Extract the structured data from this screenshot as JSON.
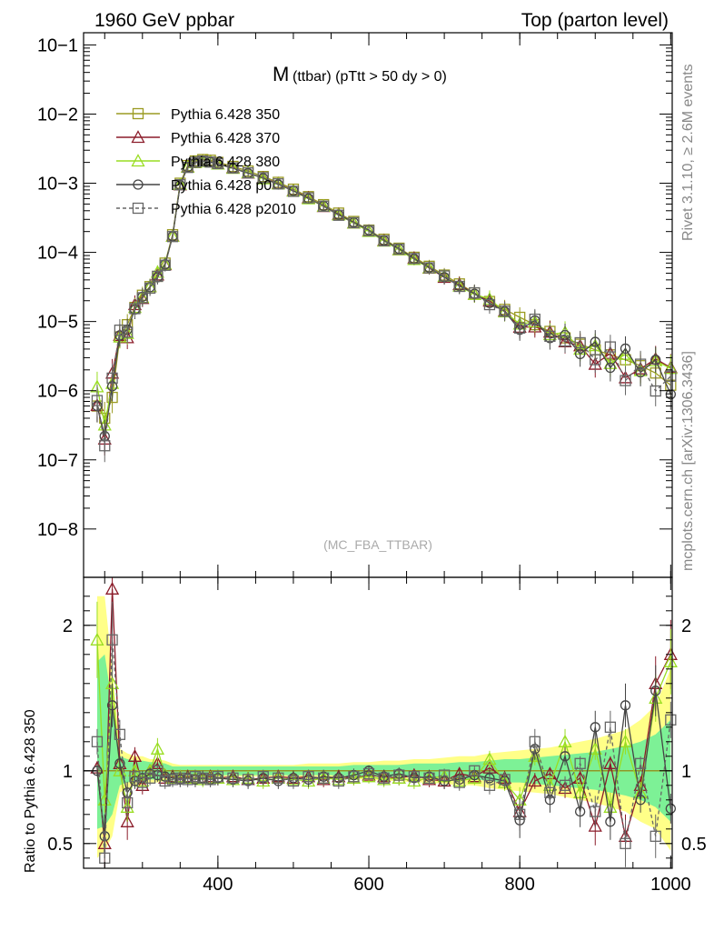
{
  "header": {
    "left_title": "1960 GeV ppbar",
    "right_title": "Top (parton level)"
  },
  "plot_title": {
    "main": "M",
    "sub": "(ttbar) (pTtt > 50 dy > 0)"
  },
  "side_labels": {
    "rivet": "Rivet 3.1.10, ≥ 2.6M events",
    "mcplots": "mcplots.cern.ch [arXiv:1306.3436]"
  },
  "watermark": "(MC_FBA_TTBAR)",
  "colors": {
    "p350": "#9b9b22",
    "p370": "#8b1c2a",
    "p380": "#99dd22",
    "p0": "#444444",
    "p2010": "#666666",
    "band_yellow": "#ffff88",
    "band_green": "#66ee99"
  },
  "chart_data": [
    {
      "type": "line",
      "scale": "log",
      "ylim": [
        2e-09,
        0.15
      ],
      "xlim": [
        222,
        1002
      ],
      "ytick_labels": [
        "10−8",
        "10−7",
        "10−6",
        "10−5",
        "10−4",
        "10−3",
        "10−2",
        "10−1"
      ],
      "ytick_values": [
        1e-08,
        1e-07,
        1e-06,
        1e-05,
        0.0001,
        0.001,
        0.01,
        0.1
      ],
      "legend": {
        "placement": "top-left",
        "entries": [
          {
            "key": "p350",
            "label": "Pythia 6.428 350",
            "marker": "square",
            "dashed": false
          },
          {
            "key": "p370",
            "label": "Pythia 6.428 370",
            "marker": "triangle",
            "dashed": false
          },
          {
            "key": "p380",
            "label": "Pythia 6.428 380",
            "marker": "triangle",
            "dashed": false
          },
          {
            "key": "p0",
            "label": "Pythia 6.428 p0",
            "marker": "circle",
            "dashed": false
          },
          {
            "key": "p2010",
            "label": "Pythia 6.428 p2010",
            "marker": "square",
            "dashed": true
          }
        ]
      },
      "x": [
        240,
        250,
        260,
        270,
        280,
        290,
        300,
        310,
        320,
        330,
        340,
        350,
        360,
        370,
        380,
        390,
        400,
        420,
        440,
        460,
        480,
        500,
        520,
        540,
        560,
        580,
        600,
        620,
        640,
        660,
        680,
        700,
        720,
        740,
        760,
        780,
        800,
        820,
        840,
        860,
        880,
        900,
        920,
        940,
        960,
        980,
        1000
      ],
      "reference": [
        6e-07,
        4e-07,
        8e-07,
        6e-06,
        9e-06,
        1.6e-05,
        2.4e-05,
        3.2e-05,
        4.5e-05,
        7e-05,
        0.00018,
        0.001,
        0.0018,
        0.0021,
        0.0022,
        0.00215,
        0.002,
        0.00175,
        0.0015,
        0.00125,
        0.00103,
        0.00082,
        0.00064,
        0.00049,
        0.00037,
        0.00028,
        0.00021,
        0.000155,
        0.000115,
        8.5e-05,
        6.3e-05,
        4.7e-05,
        3.5e-05,
        2.6e-05,
        1.95e-05,
        1.5e-05,
        1.15e-05,
        9e-06,
        7.2e-06,
        5.8e-06,
        4.7e-06,
        3.9e-06,
        3.3e-06,
        2.8e-06,
        2.3e-06,
        1.8e-06,
        1.2e-06
      ]
    },
    {
      "type": "line",
      "ylabel": "Ratio to Pythia 6.428 350",
      "ylim": [
        0.33,
        2.33
      ],
      "ytick_labels": [
        "0.5",
        "1",
        "2"
      ],
      "ytick_values": [
        0.5,
        1,
        2
      ],
      "xtick_labels": [
        "400",
        "600",
        "800",
        "1000"
      ],
      "xtick_values": [
        400,
        600,
        800,
        1000
      ],
      "xlim": [
        222,
        1002
      ],
      "x": [
        240,
        250,
        260,
        270,
        280,
        290,
        300,
        310,
        320,
        330,
        340,
        350,
        360,
        370,
        380,
        390,
        400,
        420,
        440,
        460,
        480,
        500,
        520,
        540,
        560,
        580,
        600,
        620,
        640,
        660,
        680,
        700,
        720,
        740,
        760,
        780,
        800,
        820,
        840,
        860,
        880,
        900,
        920,
        940,
        960,
        980,
        1000
      ],
      "series": [
        {
          "key": "p350",
          "values": [
            1,
            1,
            1,
            1,
            1,
            1,
            1,
            1,
            1,
            1,
            1,
            1,
            1,
            1,
            1,
            1,
            1,
            1,
            1,
            1,
            1,
            1,
            1,
            1,
            1,
            1,
            1,
            1,
            1,
            1,
            1,
            1,
            1,
            1,
            1,
            1,
            1,
            1,
            1,
            1,
            1,
            1,
            1,
            1,
            1,
            1,
            1
          ]
        },
        {
          "key": "p370",
          "values": [
            1.02,
            0.5,
            2.25,
            1.05,
            0.65,
            1.1,
            0.9,
            1.0,
            1.05,
            0.95,
            0.96,
            0.95,
            0.96,
            0.95,
            0.95,
            0.96,
            0.95,
            0.96,
            0.94,
            0.95,
            0.96,
            0.95,
            0.96,
            0.94,
            0.96,
            0.95,
            0.97,
            0.96,
            0.95,
            0.97,
            0.94,
            0.93,
            0.98,
            0.96,
            1.02,
            0.95,
            0.72,
            0.93,
            0.98,
            0.88,
            0.95,
            0.62,
            1.05,
            0.55,
            0.9,
            1.6,
            1.8
          ]
        },
        {
          "key": "p380",
          "values": [
            1.9,
            0.8,
            1.6,
            1.0,
            0.75,
            1.0,
            0.93,
            1.0,
            1.15,
            0.97,
            0.95,
            0.96,
            0.95,
            0.95,
            0.94,
            0.95,
            0.95,
            0.94,
            0.95,
            0.93,
            0.95,
            0.94,
            0.93,
            0.95,
            0.94,
            0.95,
            0.96,
            0.94,
            0.95,
            0.93,
            0.95,
            0.96,
            0.93,
            0.95,
            1.08,
            0.92,
            0.8,
            1.1,
            0.9,
            1.2,
            0.85,
            1.15,
            0.75,
            1.2,
            0.85,
            1.5,
            1.75
          ]
        },
        {
          "key": "p0",
          "values": [
            1.0,
            0.55,
            1.45,
            1.05,
            0.85,
            0.93,
            0.95,
            0.98,
            0.97,
            0.96,
            0.95,
            0.94,
            0.95,
            0.94,
            0.95,
            0.94,
            0.95,
            0.94,
            0.93,
            0.95,
            0.93,
            0.95,
            0.94,
            0.96,
            0.95,
            0.97,
            1.0,
            0.96,
            0.98,
            0.95,
            0.96,
            0.93,
            0.94,
            0.97,
            0.95,
            0.93,
            0.66,
            1.15,
            0.8,
            1.1,
            0.72,
            1.3,
            0.65,
            1.45,
            0.8,
            1.55,
            0.74
          ]
        },
        {
          "key": "p2010",
          "values": [
            1.2,
            0.4,
            1.9,
            1.25,
            0.78,
            0.96,
            0.92,
            0.95,
            1.0,
            0.93,
            0.94,
            0.95,
            0.94,
            0.96,
            0.95,
            0.94,
            0.96,
            0.95,
            0.94,
            0.96,
            0.95,
            0.93,
            0.96,
            0.95,
            0.93,
            0.96,
            0.98,
            0.95,
            0.97,
            0.96,
            0.95,
            0.97,
            0.92,
            1.0,
            0.9,
            0.94,
            0.7,
            1.2,
            0.85,
            0.9,
            1.05,
            0.72,
            1.3,
            0.5,
            1.05,
            0.55,
            1.35
          ]
        }
      ],
      "band_yellow": {
        "lower": [
          0.4,
          0.45,
          0.55,
          0.85,
          0.88,
          0.9,
          0.9,
          0.92,
          0.92,
          0.93,
          0.95,
          0.96,
          0.96,
          0.96,
          0.96,
          0.96,
          0.96,
          0.96,
          0.96,
          0.96,
          0.96,
          0.96,
          0.95,
          0.95,
          0.95,
          0.94,
          0.94,
          0.93,
          0.93,
          0.92,
          0.92,
          0.91,
          0.9,
          0.9,
          0.88,
          0.87,
          0.86,
          0.85,
          0.84,
          0.82,
          0.8,
          0.78,
          0.75,
          0.72,
          0.65,
          0.6,
          0.45
        ],
        "upper": [
          2.2,
          2.2,
          1.7,
          1.15,
          1.12,
          1.1,
          1.1,
          1.08,
          1.08,
          1.07,
          1.05,
          1.04,
          1.04,
          1.04,
          1.04,
          1.04,
          1.04,
          1.04,
          1.04,
          1.04,
          1.04,
          1.04,
          1.05,
          1.05,
          1.05,
          1.06,
          1.06,
          1.07,
          1.07,
          1.08,
          1.08,
          1.09,
          1.1,
          1.1,
          1.12,
          1.13,
          1.14,
          1.15,
          1.16,
          1.18,
          1.2,
          1.22,
          1.25,
          1.28,
          1.35,
          1.45,
          1.7
        ]
      },
      "band_green": {
        "lower": [
          0.6,
          0.62,
          0.7,
          0.9,
          0.92,
          0.93,
          0.93,
          0.94,
          0.94,
          0.95,
          0.97,
          0.97,
          0.97,
          0.97,
          0.97,
          0.97,
          0.97,
          0.97,
          0.97,
          0.97,
          0.97,
          0.97,
          0.97,
          0.97,
          0.97,
          0.96,
          0.96,
          0.96,
          0.96,
          0.95,
          0.95,
          0.95,
          0.94,
          0.94,
          0.93,
          0.92,
          0.92,
          0.91,
          0.9,
          0.89,
          0.88,
          0.87,
          0.85,
          0.83,
          0.8,
          0.75,
          0.65
        ],
        "upper": [
          1.75,
          1.8,
          1.45,
          1.1,
          1.08,
          1.07,
          1.07,
          1.06,
          1.06,
          1.05,
          1.03,
          1.03,
          1.03,
          1.03,
          1.03,
          1.03,
          1.03,
          1.03,
          1.03,
          1.03,
          1.03,
          1.03,
          1.03,
          1.03,
          1.03,
          1.04,
          1.04,
          1.04,
          1.04,
          1.05,
          1.05,
          1.05,
          1.06,
          1.06,
          1.07,
          1.08,
          1.08,
          1.09,
          1.1,
          1.11,
          1.12,
          1.13,
          1.15,
          1.17,
          1.2,
          1.25,
          1.35
        ]
      }
    }
  ]
}
